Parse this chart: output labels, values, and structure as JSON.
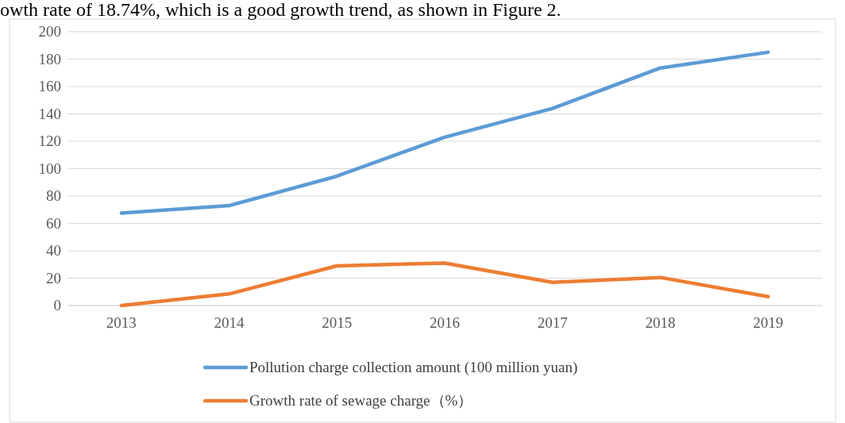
{
  "chart_data": {
    "type": "line",
    "categories": [
      "2013",
      "2014",
      "2015",
      "2016",
      "2017",
      "2018",
      "2019"
    ],
    "series": [
      {
        "name": "Pollution charge collection amount (100 million yuan)",
        "color": "#5b9bd5",
        "values": [
          67.5,
          73,
          94.5,
          123,
          144,
          173.5,
          185
        ]
      },
      {
        "name": "Growth rate of sewage charge（%）",
        "color": "#ed7d31",
        "values": [
          0,
          8.5,
          29,
          31,
          17,
          20.5,
          6.5
        ]
      }
    ],
    "ylim": [
      0,
      200
    ],
    "yticks": [
      0,
      20,
      40,
      60,
      80,
      100,
      120,
      140,
      160,
      180,
      200
    ],
    "grid": "y",
    "legend": "bottom",
    "marker": "none",
    "line_style": "solid",
    "annotations": [
      "owth rate of 18.74%, which is a good growth trend, as shown in Figure 2."
    ]
  }
}
